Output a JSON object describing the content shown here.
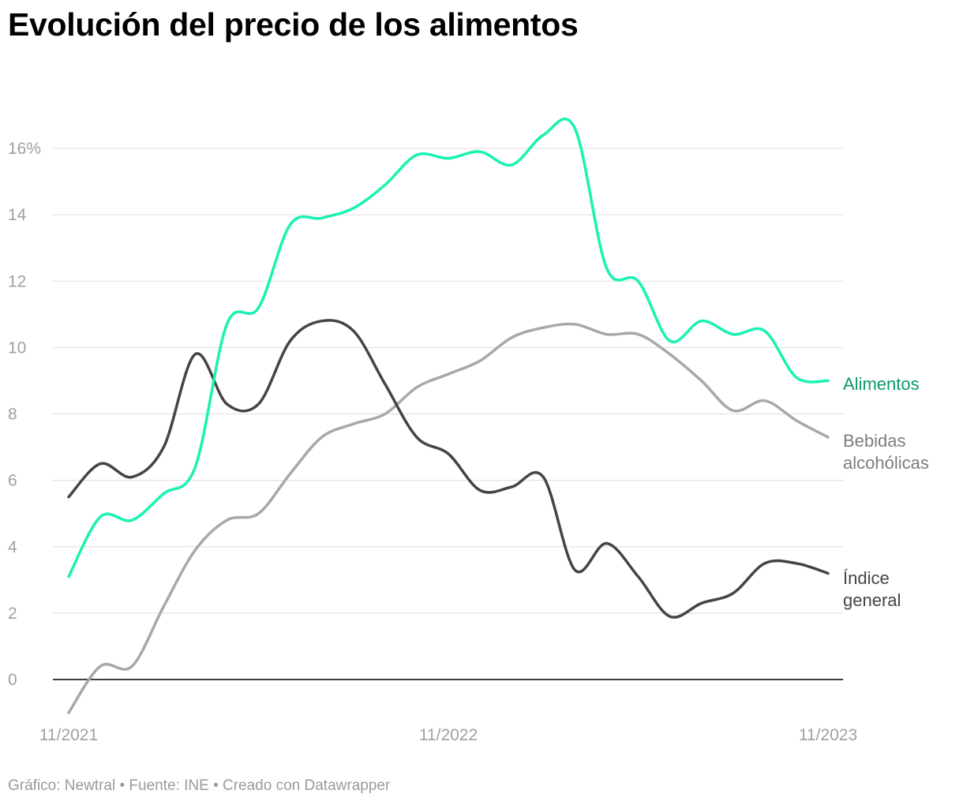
{
  "title": "Evolución del precio de los alimentos",
  "footer": "Gráfico: Newtral • Fuente: INE • Creado con Datawrapper",
  "chart_data": {
    "type": "line",
    "title": "Evolución del precio de los alimentos",
    "ylim": [
      -1,
      17
    ],
    "yticks": [
      0,
      2,
      4,
      6,
      8,
      10,
      12,
      14,
      16
    ],
    "ytick_labels": [
      "0",
      "2",
      "4",
      "6",
      "8",
      "10",
      "12",
      "14",
      "16%"
    ],
    "xtick_labels": [
      "11/2021",
      "11/2022",
      "11/2023"
    ],
    "xtick_index": [
      0,
      12,
      24
    ],
    "grid": true,
    "series": [
      {
        "name": "Alimentos",
        "label_lines": [
          "Alimentos"
        ],
        "color": "#19f2b2",
        "label_color": "#0b9b6b",
        "values": [
          3.1,
          4.9,
          4.8,
          5.6,
          6.4,
          10.7,
          11.2,
          13.7,
          13.9,
          14.2,
          14.9,
          15.8,
          15.7,
          15.9,
          15.5,
          16.4,
          16.6,
          12.4,
          12.0,
          10.2,
          10.8,
          10.4,
          10.5,
          9.1,
          9.0
        ]
      },
      {
        "name": "Bebidas alcohólicas",
        "label_lines": [
          "Bebidas",
          "alcohólicas"
        ],
        "color": "#a8a8a8",
        "label_color": "#7d7d7d",
        "values": [
          -1.0,
          0.4,
          0.4,
          2.2,
          3.9,
          4.8,
          5.0,
          6.2,
          7.3,
          7.7,
          8.0,
          8.8,
          9.2,
          9.6,
          10.3,
          10.6,
          10.7,
          10.4,
          10.4,
          9.8,
          9.0,
          8.1,
          8.4,
          7.8,
          7.3
        ]
      },
      {
        "name": "Índice general",
        "label_lines": [
          "Índice",
          "general"
        ],
        "color": "#444444",
        "label_color": "#444444",
        "values": [
          5.5,
          6.5,
          6.1,
          7.0,
          9.8,
          8.3,
          8.3,
          10.2,
          10.8,
          10.5,
          8.9,
          7.3,
          6.8,
          5.7,
          5.8,
          6.1,
          3.3,
          4.1,
          3.1,
          1.9,
          2.3,
          2.6,
          3.5,
          3.5,
          3.2
        ]
      }
    ]
  }
}
